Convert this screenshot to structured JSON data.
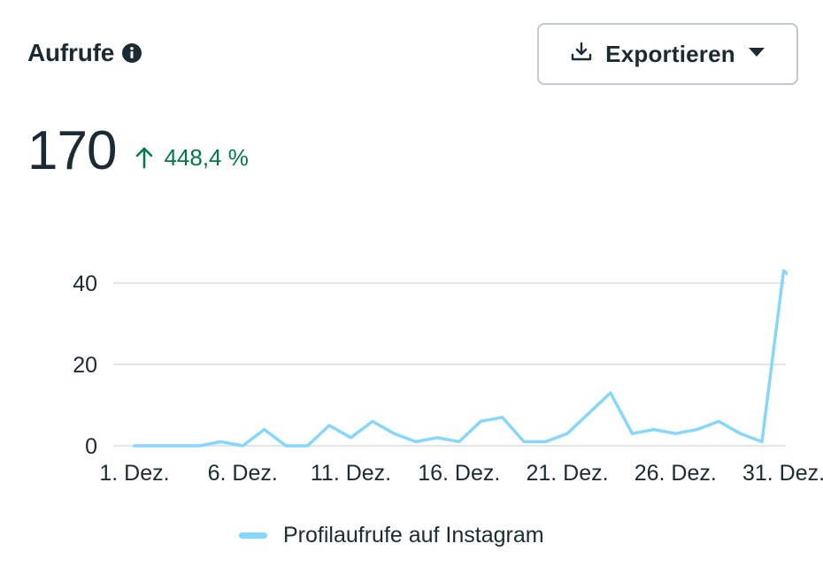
{
  "header": {
    "title": "Aufrufe",
    "info_icon": "info-icon"
  },
  "export": {
    "label": "Exportieren",
    "icon": "download-icon",
    "caret": "caret-down-icon"
  },
  "metric": {
    "value": "170",
    "change": "448,4 %",
    "change_direction": "up",
    "change_color": "#007a4d"
  },
  "colors": {
    "series": "#85d7fb",
    "grid": "#d9dde1",
    "text": "#1c2b33"
  },
  "chart_data": {
    "type": "line",
    "x": [
      "1. Dez.",
      "2. Dez.",
      "3. Dez.",
      "4. Dez.",
      "5. Dez.",
      "6. Dez.",
      "7. Dez.",
      "8. Dez.",
      "9. Dez.",
      "10. Dez.",
      "11. Dez.",
      "12. Dez.",
      "13. Dez.",
      "14. Dez.",
      "15. Dez.",
      "16. Dez.",
      "17. Dez.",
      "18. Dez.",
      "19. Dez.",
      "20. Dez.",
      "21. Dez.",
      "22. Dez.",
      "23. Dez.",
      "24. Dez.",
      "25. Dez.",
      "26. Dez.",
      "27. Dez.",
      "28. Dez.",
      "29. Dez.",
      "30. Dez.",
      "31. Dez.",
      "1. Jan."
    ],
    "tick_labels": [
      "1. Dez.",
      "6. Dez.",
      "11. Dez.",
      "16. Dez.",
      "21. Dez.",
      "26. Dez.",
      "31. Dez."
    ],
    "y_ticks": [
      0,
      20,
      40
    ],
    "ylim": [
      0,
      40
    ],
    "series": [
      {
        "name": "Profilaufrufe auf Instagram",
        "values": [
          0,
          0,
          0,
          0,
          1,
          0,
          4,
          0,
          0,
          5,
          2,
          6,
          3,
          1,
          2,
          1,
          6,
          7,
          1,
          1,
          3,
          8,
          13,
          3,
          4,
          3,
          4,
          6,
          3,
          1,
          43,
          39
        ]
      }
    ],
    "legend": "bottom",
    "grid": true
  }
}
